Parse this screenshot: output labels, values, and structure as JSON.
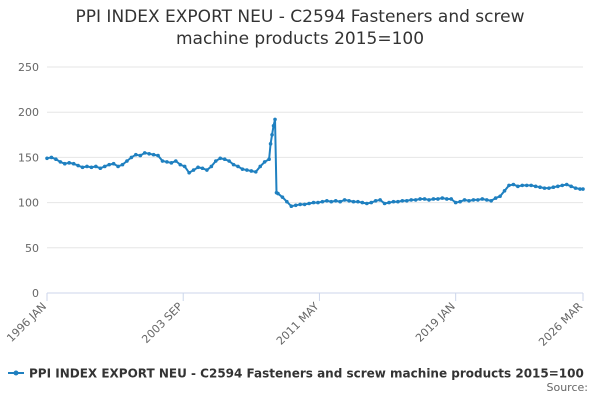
{
  "chart_data": {
    "type": "line",
    "title": "PPI INDEX EXPORT NEU - C2594 Fasteners and screw machine products 2015=100",
    "x": [
      "1996 JAN",
      "1996 APR",
      "1996 JUL",
      "1996 OCT",
      "1997 JAN",
      "1997 APR",
      "1997 JUL",
      "1997 OCT",
      "1998 JAN",
      "1998 APR",
      "1998 JUL",
      "1998 OCT",
      "1999 JAN",
      "1999 APR",
      "1999 JUL",
      "1999 OCT",
      "2000 JAN",
      "2000 APR",
      "2000 JUL",
      "2000 OCT",
      "2001 JAN",
      "2001 APR",
      "2001 JUL",
      "2001 OCT",
      "2002 JAN",
      "2002 APR",
      "2002 JUL",
      "2002 OCT",
      "2003 JAN",
      "2003 APR",
      "2003 JUL",
      "2003 OCT",
      "2004 JAN",
      "2004 APR",
      "2004 JUL",
      "2004 OCT",
      "2005 JAN",
      "2005 APR",
      "2005 JUL",
      "2005 OCT",
      "2006 JAN",
      "2006 APR",
      "2006 JUL",
      "2006 OCT",
      "2007 JAN",
      "2007 APR",
      "2007 JUL",
      "2007 OCT",
      "2008 JAN",
      "2008 APR",
      "2008 JUL",
      "2008 AUG",
      "2008 SEP",
      "2008 OCT",
      "2008 NOV",
      "2008 DEC",
      "2009 JAN",
      "2009 APR",
      "2009 JUL",
      "2009 OCT",
      "2010 JAN",
      "2010 APR",
      "2010 JUL",
      "2010 OCT",
      "2011 JAN",
      "2011 APR",
      "2011 JUL",
      "2011 OCT",
      "2012 JAN",
      "2012 APR",
      "2012 JUL",
      "2012 OCT",
      "2013 JAN",
      "2013 APR",
      "2013 JUL",
      "2013 OCT",
      "2014 JAN",
      "2014 APR",
      "2014 JUL",
      "2014 OCT",
      "2015 JAN",
      "2015 APR",
      "2015 JUL",
      "2015 OCT",
      "2016 JAN",
      "2016 APR",
      "2016 JUL",
      "2016 OCT",
      "2017 JAN",
      "2017 APR",
      "2017 JUL",
      "2017 OCT",
      "2018 JAN",
      "2018 APR",
      "2018 JUL",
      "2018 OCT",
      "2019 JAN",
      "2019 APR",
      "2019 JUL",
      "2019 OCT",
      "2020 JAN",
      "2020 APR",
      "2020 JUL",
      "2020 OCT",
      "2021 JAN",
      "2021 APR",
      "2021 JUL",
      "2021 OCT",
      "2022 JAN",
      "2022 APR",
      "2022 JUL",
      "2022 OCT",
      "2023 JAN",
      "2023 APR",
      "2023 JUL",
      "2023 OCT",
      "2024 JAN",
      "2024 APR",
      "2024 JUL",
      "2024 OCT",
      "2025 JAN",
      "2025 APR",
      "2025 JUL",
      "2025 OCT",
      "2026 JAN",
      "2026 MAR"
    ],
    "series": [
      {
        "name": "PPI INDEX EXPORT NEU - C2594 Fasteners and screw machine products 2015=100",
        "color": "#1f80c0",
        "values": [
          149,
          150,
          148,
          145,
          143,
          144,
          143,
          141,
          139,
          140,
          139,
          140,
          138,
          140,
          142,
          143,
          140,
          142,
          146,
          150,
          153,
          152,
          155,
          154,
          153,
          152,
          146,
          145,
          144,
          146,
          142,
          140,
          133,
          136,
          139,
          138,
          136,
          140,
          146,
          149,
          148,
          146,
          142,
          140,
          137,
          136,
          135,
          134,
          140,
          145,
          148,
          165,
          175,
          185,
          192,
          111,
          110,
          106,
          101,
          96,
          97,
          98,
          98,
          99,
          100,
          100,
          101,
          102,
          101,
          102,
          101,
          103,
          102,
          101,
          101,
          100,
          99,
          100,
          102,
          103,
          99,
          100,
          101,
          101,
          102,
          102,
          103,
          103,
          104,
          104,
          103,
          104,
          104,
          105,
          104,
          104,
          100,
          101,
          103,
          102,
          103,
          103,
          104,
          103,
          102,
          105,
          107,
          113,
          119,
          120,
          118,
          119,
          119,
          119,
          118,
          117,
          116,
          116,
          117,
          118,
          119,
          120,
          118,
          116,
          115,
          115
        ]
      }
    ],
    "xticks": [
      "1996 JAN",
      "2003 SEP",
      "2011 MAY",
      "2019 JAN",
      "2026 MAR"
    ],
    "ylim": [
      0,
      250
    ],
    "yticks": [
      0,
      50,
      100,
      150,
      200,
      250
    ],
    "grid": true,
    "source": "Source:"
  }
}
